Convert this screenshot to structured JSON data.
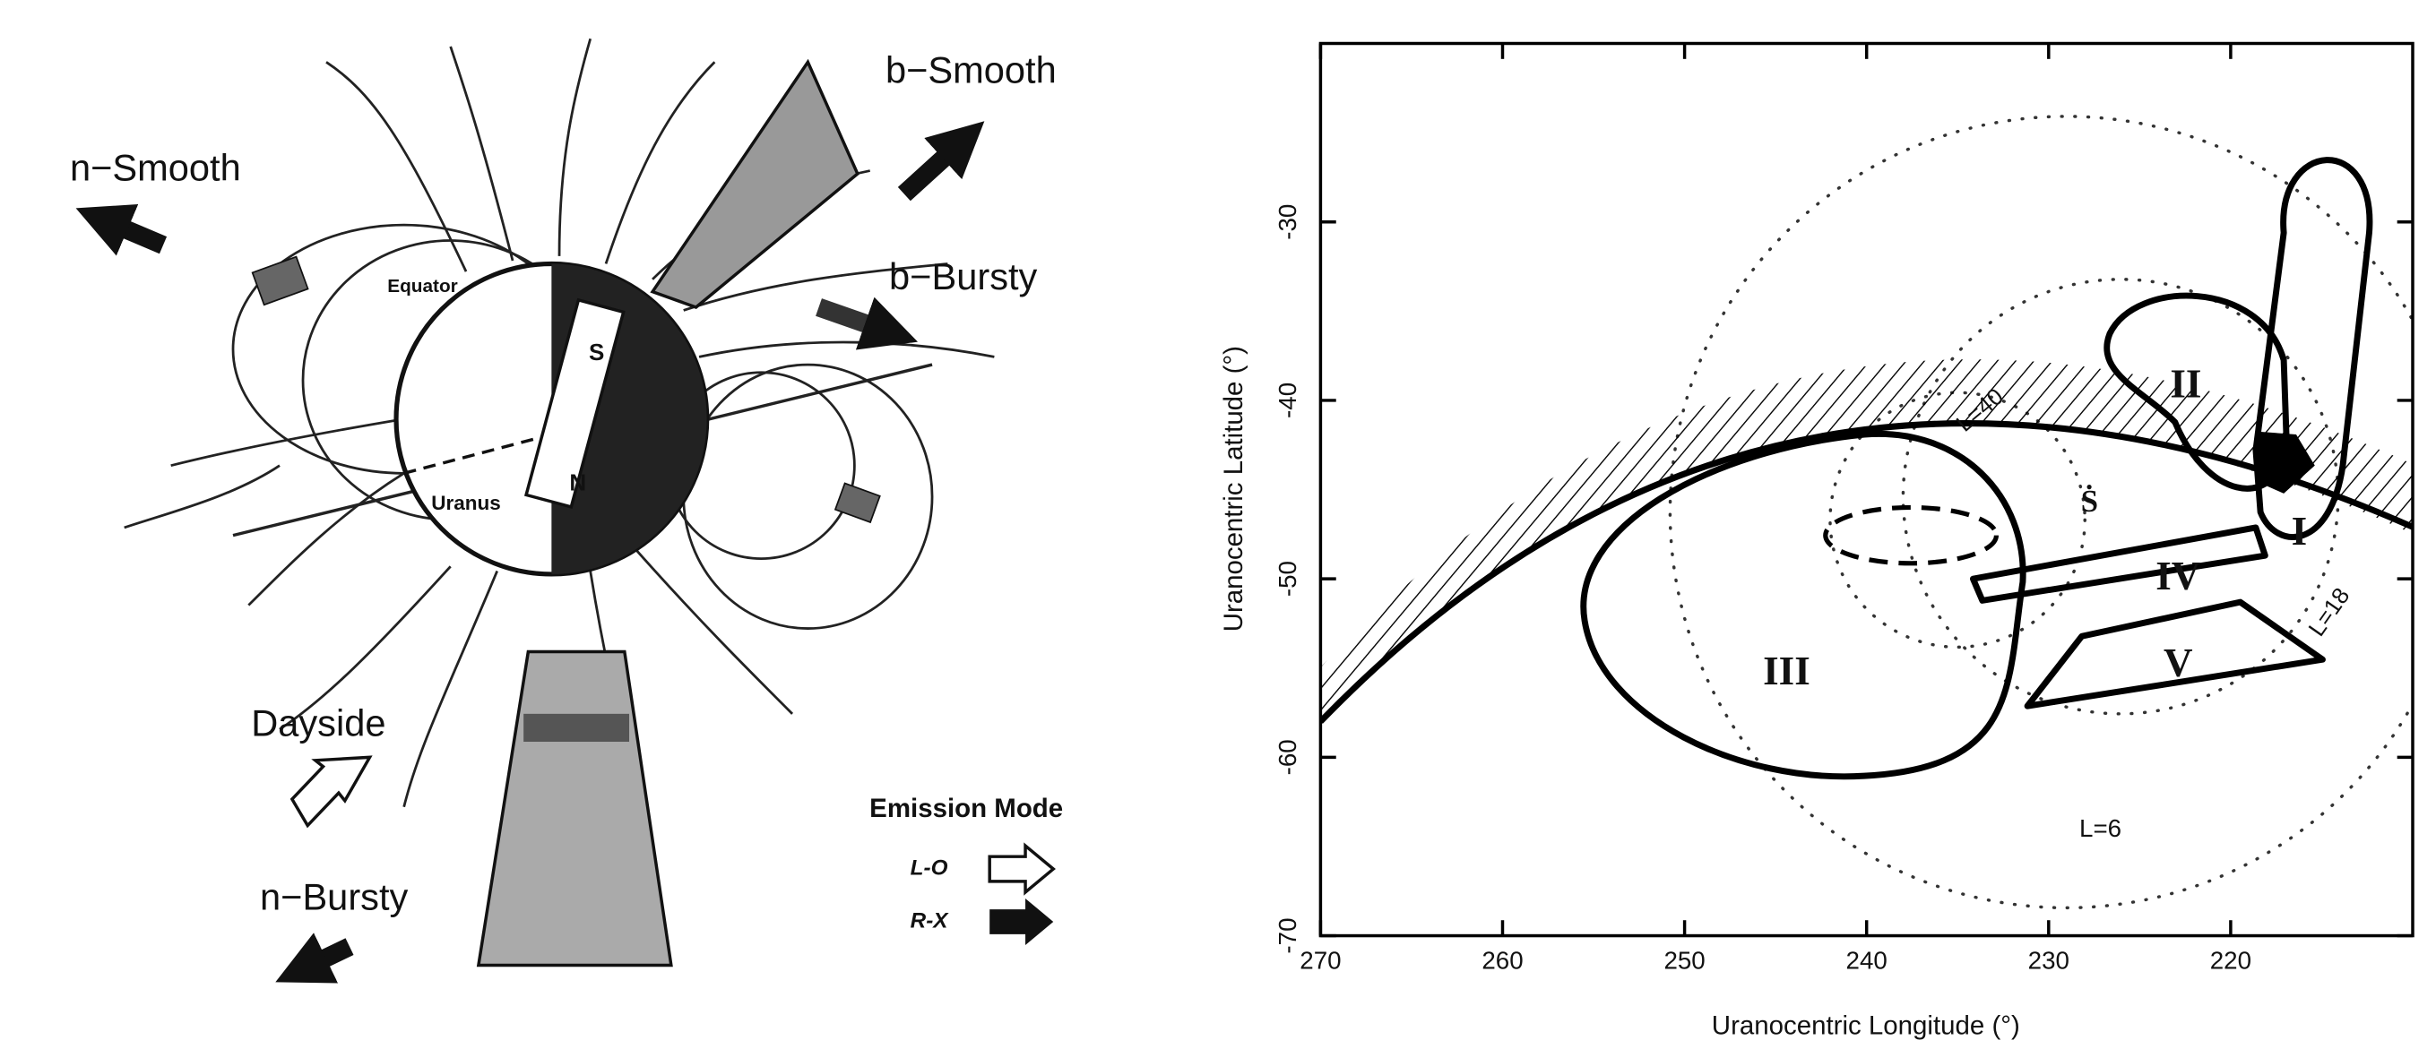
{
  "diagram": {
    "labels": [
      "n−Smooth",
      "b−Smooth",
      "b−Bursty",
      "Dayside",
      "n−Bursty",
      "Equator",
      "Uranus",
      "S",
      "N",
      "Emission Mode",
      "L-O",
      "R-X"
    ]
  },
  "chart_data": {
    "type": "region-map",
    "xlabel": "Uranocentric Longitude (°)",
    "ylabel": "Uranocentric Latitude (°)",
    "xlim": [
      270,
      210
    ],
    "ylim": [
      -70,
      -20
    ],
    "xticks": [
      270,
      260,
      250,
      240,
      230,
      220
    ],
    "yticks": [
      -30,
      -40,
      -50,
      -60,
      -70
    ],
    "regions": [
      "I",
      "II",
      "III",
      "IV",
      "V"
    ],
    "annotations": [
      "L=40",
      "L=18",
      "L=6",
      "Ṡ"
    ]
  }
}
